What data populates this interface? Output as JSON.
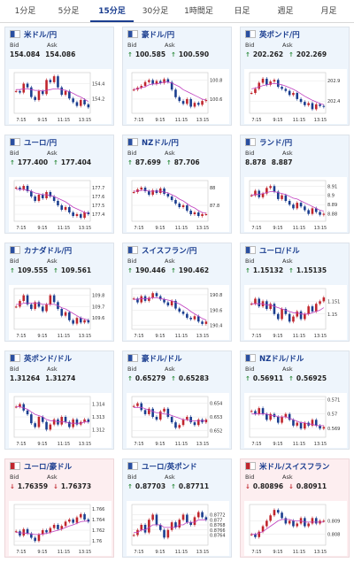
{
  "tabs": [
    {
      "label": "1分足",
      "active": false
    },
    {
      "label": "5分足",
      "active": false
    },
    {
      "label": "15分足",
      "active": true
    },
    {
      "label": "30分足",
      "active": false
    },
    {
      "label": "1時間足",
      "active": false
    },
    {
      "label": "日足",
      "active": false
    },
    {
      "label": "週足",
      "active": false
    },
    {
      "label": "月足",
      "active": false
    }
  ],
  "bid_label": "Bid",
  "ask_label": "Ask",
  "colors": {
    "up": "#c0262d",
    "down": "#1a3d8f",
    "ma": "#c040c0",
    "up_bg": "#eef5fc",
    "down_bg": "#fdeef0"
  },
  "cards": [
    {
      "pair": "米ドル/円",
      "flag": "us-jp-flag-icon",
      "trend": "none",
      "bid": "154.084",
      "ask": "154.086",
      "chart_data": {
        "type": "candlestick",
        "x_ticks": [
          "7:15",
          "9:15",
          "11:15",
          "13:15"
        ],
        "y_ticks": [
          "154.4",
          "154.2"
        ],
        "closes": [
          154.3,
          154.28,
          154.4,
          154.35,
          154.22,
          154.18,
          154.3,
          154.26,
          154.45,
          154.42,
          154.5,
          154.35,
          154.25,
          154.3,
          154.2,
          154.15,
          154.1,
          154.18,
          154.12,
          154.08
        ],
        "ma": [
          154.32,
          154.32,
          154.33,
          154.33,
          154.32,
          154.31,
          154.31,
          154.3,
          154.31,
          154.32,
          154.33,
          154.33,
          154.32,
          154.31,
          154.29,
          154.27,
          154.24,
          154.22,
          154.19,
          154.16
        ],
        "ylim": [
          154.0,
          154.55
        ]
      }
    },
    {
      "pair": "豪ドル/円",
      "flag": "au-jp-flag-icon",
      "trend": "up",
      "bid": "100.585",
      "ask": "100.590",
      "chart_data": {
        "type": "candlestick",
        "x_ticks": [
          "7:15",
          "9:15",
          "11:15",
          "13:15"
        ],
        "y_ticks": [
          "100.8",
          "100.6"
        ],
        "closes": [
          100.7,
          100.72,
          100.74,
          100.78,
          100.8,
          100.76,
          100.79,
          100.77,
          100.81,
          100.78,
          100.7,
          100.62,
          100.58,
          100.55,
          100.6,
          100.52,
          100.56,
          100.54,
          100.58,
          100.59
        ],
        "ma": [
          100.7,
          100.71,
          100.72,
          100.73,
          100.75,
          100.76,
          100.76,
          100.77,
          100.78,
          100.78,
          100.77,
          100.75,
          100.73,
          100.7,
          100.68,
          100.66,
          100.64,
          100.62,
          100.6,
          100.59
        ],
        "ylim": [
          100.45,
          100.88
        ]
      }
    },
    {
      "pair": "英ポンド/円",
      "flag": "gb-jp-flag-icon",
      "trend": "up",
      "bid": "202.262",
      "ask": "202.269",
      "chart_data": {
        "type": "candlestick",
        "x_ticks": [
          "7:15",
          "9:15",
          "11:15",
          "13:15"
        ],
        "y_ticks": [
          "202.9",
          "202.4"
        ],
        "closes": [
          202.6,
          202.7,
          202.85,
          202.95,
          202.8,
          202.88,
          202.92,
          202.75,
          202.7,
          202.65,
          202.55,
          202.6,
          202.45,
          202.38,
          202.3,
          202.35,
          202.2,
          202.32,
          202.28,
          202.26
        ],
        "ma": [
          202.7,
          202.72,
          202.75,
          202.78,
          202.8,
          202.82,
          202.83,
          202.82,
          202.8,
          202.77,
          202.73,
          202.69,
          202.64,
          202.58,
          202.52,
          202.47,
          202.42,
          202.38,
          202.34,
          202.31
        ],
        "ylim": [
          202.1,
          203.1
        ]
      }
    },
    {
      "pair": "ユーロ/円",
      "flag": "eu-jp-flag-icon",
      "trend": "up",
      "bid": "177.400",
      "ask": "177.404",
      "chart_data": {
        "type": "candlestick",
        "x_ticks": [
          "7:15",
          "9:15",
          "11:15",
          "13:15"
        ],
        "y_ticks": [
          "177.7",
          "177.6",
          "177.5",
          "177.4"
        ],
        "closes": [
          177.7,
          177.68,
          177.72,
          177.66,
          177.6,
          177.55,
          177.62,
          177.58,
          177.65,
          177.6,
          177.55,
          177.5,
          177.45,
          177.48,
          177.42,
          177.38,
          177.4,
          177.36,
          177.42,
          177.4
        ],
        "ma": [
          177.68,
          177.68,
          177.68,
          177.67,
          177.66,
          177.64,
          177.63,
          177.62,
          177.62,
          177.61,
          177.6,
          177.58,
          177.56,
          177.54,
          177.51,
          177.48,
          177.46,
          177.44,
          177.42,
          177.41
        ],
        "ylim": [
          177.32,
          177.78
        ]
      }
    },
    {
      "pair": "NZドル/円",
      "flag": "nz-jp-flag-icon",
      "trend": "up",
      "bid": "87.699",
      "ask": "87.706",
      "chart_data": {
        "type": "candlestick",
        "x_ticks": [
          "7:15",
          "9:15",
          "11:15",
          "13:15"
        ],
        "y_ticks": [
          "88",
          "87.8"
        ],
        "closes": [
          87.95,
          87.98,
          88.0,
          87.96,
          87.92,
          87.97,
          87.94,
          87.99,
          87.93,
          87.9,
          87.86,
          87.82,
          87.78,
          87.8,
          87.74,
          87.7,
          87.72,
          87.68,
          87.7,
          87.7
        ],
        "ma": [
          87.96,
          87.96,
          87.97,
          87.97,
          87.96,
          87.96,
          87.96,
          87.96,
          87.95,
          87.94,
          87.92,
          87.9,
          87.87,
          87.85,
          87.82,
          87.79,
          87.77,
          87.74,
          87.72,
          87.71
        ],
        "ylim": [
          87.62,
          88.08
        ]
      }
    },
    {
      "pair": "ランド/円",
      "flag": "za-jp-flag-icon",
      "trend": "none",
      "bid": "8.878",
      "ask": "8.887",
      "chart_data": {
        "type": "candlestick",
        "x_ticks": [
          "7:15",
          "9:15",
          "11:15",
          "13:15"
        ],
        "y_ticks": [
          "8.91",
          "8.9",
          "8.89",
          "8.88"
        ],
        "closes": [
          8.9,
          8.905,
          8.898,
          8.902,
          8.908,
          8.91,
          8.904,
          8.896,
          8.9,
          8.894,
          8.89,
          8.886,
          8.892,
          8.888,
          8.884,
          8.88,
          8.886,
          8.882,
          8.879,
          8.88
        ],
        "ma": [
          8.9,
          8.901,
          8.901,
          8.902,
          8.903,
          8.904,
          8.904,
          8.903,
          8.902,
          8.901,
          8.899,
          8.897,
          8.896,
          8.894,
          8.892,
          8.89,
          8.888,
          8.886,
          8.884,
          8.883
        ],
        "ylim": [
          8.872,
          8.916
        ]
      }
    },
    {
      "pair": "カナダドル/円",
      "flag": "ca-jp-flag-icon",
      "trend": "up",
      "bid": "109.555",
      "ask": "109.561",
      "chart_data": {
        "type": "candlestick",
        "x_ticks": [
          "7:15",
          "9:15",
          "11:15",
          "13:15"
        ],
        "y_ticks": [
          "109.8",
          "109.7",
          "109.6"
        ],
        "closes": [
          109.7,
          109.75,
          109.8,
          109.72,
          109.68,
          109.74,
          109.7,
          109.66,
          109.72,
          109.8,
          109.74,
          109.68,
          109.62,
          109.65,
          109.58,
          109.55,
          109.6,
          109.56,
          109.58,
          109.56
        ],
        "ma": [
          109.72,
          109.72,
          109.73,
          109.73,
          109.73,
          109.73,
          109.73,
          109.72,
          109.72,
          109.72,
          109.72,
          109.71,
          109.69,
          109.68,
          109.66,
          109.64,
          109.62,
          109.6,
          109.59,
          109.58
        ],
        "ylim": [
          109.5,
          109.86
        ]
      }
    },
    {
      "pair": "スイスフラン/円",
      "flag": "ch-jp-flag-icon",
      "trend": "up",
      "bid": "190.446",
      "ask": "190.462",
      "chart_data": {
        "type": "candlestick",
        "x_ticks": [
          "7:15",
          "9:15",
          "11:15",
          "13:15"
        ],
        "y_ticks": [
          "190.8",
          "190.6",
          "190.4"
        ],
        "closes": [
          190.75,
          190.7,
          190.78,
          190.72,
          190.76,
          190.82,
          190.78,
          190.74,
          190.7,
          190.66,
          190.72,
          190.62,
          190.58,
          190.55,
          190.5,
          190.48,
          190.52,
          190.45,
          190.42,
          190.45
        ],
        "ma": [
          190.74,
          190.74,
          190.75,
          190.75,
          190.75,
          190.76,
          190.76,
          190.75,
          190.74,
          190.73,
          190.72,
          190.7,
          190.68,
          190.65,
          190.62,
          190.58,
          190.55,
          190.52,
          190.49,
          190.47
        ],
        "ylim": [
          190.35,
          190.88
        ]
      }
    },
    {
      "pair": "ユーロ/ドル",
      "flag": "eu-us-flag-icon",
      "trend": "up",
      "bid": "1.15132",
      "ask": "1.15135",
      "chart_data": {
        "type": "candlestick",
        "x_ticks": [
          "7:15",
          "9:15",
          "11:15",
          "13:15"
        ],
        "y_ticks": [
          "1.151",
          "1.15"
        ],
        "closes": [
          1.1508,
          1.1512,
          1.1506,
          1.151,
          1.1504,
          1.1508,
          1.15,
          1.1496,
          1.1504,
          1.15,
          1.1494,
          1.1498,
          1.1502,
          1.1496,
          1.15,
          1.1506,
          1.1502,
          1.1508,
          1.151,
          1.1513
        ],
        "ma": [
          1.1508,
          1.1508,
          1.1508,
          1.1508,
          1.1507,
          1.1507,
          1.1506,
          1.1505,
          1.1504,
          1.1503,
          1.1502,
          1.1501,
          1.1501,
          1.15,
          1.15,
          1.15,
          1.1501,
          1.1502,
          1.1503,
          1.1505
        ],
        "ylim": [
          1.1488,
          1.152
        ]
      }
    },
    {
      "pair": "英ポンド/ドル",
      "flag": "gb-us-flag-icon",
      "trend": "none",
      "bid": "1.31264",
      "ask": "1.31274",
      "chart_data": {
        "type": "candlestick",
        "x_ticks": [
          "7:15",
          "9:15",
          "11:15",
          "13:15"
        ],
        "y_ticks": [
          "1.314",
          "1.313",
          "1.312"
        ],
        "closes": [
          1.3138,
          1.314,
          1.3135,
          1.3132,
          1.3125,
          1.3122,
          1.313,
          1.3126,
          1.312,
          1.3124,
          1.3128,
          1.3124,
          1.313,
          1.3126,
          1.3122,
          1.3128,
          1.3124,
          1.3126,
          1.3128,
          1.3126
        ],
        "ma": [
          1.3138,
          1.3138,
          1.3137,
          1.3136,
          1.3134,
          1.3132,
          1.3131,
          1.313,
          1.3128,
          1.3127,
          1.3127,
          1.3126,
          1.3126,
          1.3126,
          1.3125,
          1.3125,
          1.3125,
          1.3125,
          1.3126,
          1.3126
        ],
        "ylim": [
          1.3114,
          1.3146
        ]
      }
    },
    {
      "pair": "豪ドル/ドル",
      "flag": "au-us-flag-icon",
      "trend": "up",
      "bid": "0.65279",
      "ask": "0.65283",
      "chart_data": {
        "type": "candlestick",
        "x_ticks": [
          "7:15",
          "9:15",
          "11:15",
          "13:15"
        ],
        "y_ticks": [
          "0.654",
          "0.653",
          "0.652"
        ],
        "closes": [
          0.6538,
          0.654,
          0.6535,
          0.6532,
          0.6536,
          0.653,
          0.6528,
          0.6534,
          0.6536,
          0.653,
          0.6526,
          0.6522,
          0.6524,
          0.6528,
          0.653,
          0.6526,
          0.6524,
          0.6528,
          0.6526,
          0.6528
        ],
        "ma": [
          0.6537,
          0.6537,
          0.6537,
          0.6536,
          0.6535,
          0.6534,
          0.6533,
          0.6533,
          0.6532,
          0.6532,
          0.6531,
          0.653,
          0.6529,
          0.6528,
          0.6528,
          0.6527,
          0.6527,
          0.6527,
          0.6527,
          0.6527
        ],
        "ylim": [
          0.6515,
          0.6545
        ]
      }
    },
    {
      "pair": "NZドル/ドル",
      "flag": "nz-us-flag-icon",
      "trend": "up",
      "bid": "0.56911",
      "ask": "0.56925",
      "chart_data": {
        "type": "candlestick",
        "x_ticks": [
          "7:15",
          "9:15",
          "11:15",
          "13:15"
        ],
        "y_ticks": [
          "0.571",
          "0.57",
          "0.569"
        ],
        "closes": [
          0.5702,
          0.57,
          0.5704,
          0.57,
          0.5696,
          0.57,
          0.5698,
          0.5694,
          0.5698,
          0.57,
          0.5696,
          0.5692,
          0.5694,
          0.569,
          0.5694,
          0.5692,
          0.5696,
          0.5692,
          0.569,
          0.5691
        ],
        "ma": [
          0.57,
          0.57,
          0.57,
          0.57,
          0.57,
          0.5699,
          0.5699,
          0.5698,
          0.5698,
          0.5698,
          0.5697,
          0.5696,
          0.5695,
          0.5694,
          0.5694,
          0.5693,
          0.5693,
          0.5692,
          0.5692,
          0.5692
        ],
        "ylim": [
          0.5684,
          0.5712
        ]
      }
    },
    {
      "pair": "ユーロ/豪ドル",
      "flag": "eu-au-flag-icon",
      "trend": "down",
      "bid": "1.76359",
      "ask": "1.76373",
      "chart_data": {
        "type": "candlestick",
        "x_ticks": [
          "7:15",
          "9:15",
          "11:15",
          "13:15"
        ],
        "y_ticks": [
          "1.766",
          "1.764",
          "1.762",
          "1.76"
        ],
        "closes": [
          1.7618,
          1.761,
          1.7622,
          1.7614,
          1.7606,
          1.76,
          1.7612,
          1.762,
          1.7616,
          1.7624,
          1.763,
          1.7622,
          1.7628,
          1.7636,
          1.764,
          1.7634,
          1.7644,
          1.765,
          1.764,
          1.7636
        ],
        "ma": [
          1.7616,
          1.7615,
          1.7615,
          1.7614,
          1.7613,
          1.7612,
          1.7612,
          1.7613,
          1.7614,
          1.7616,
          1.7618,
          1.762,
          1.7622,
          1.7625,
          1.7628,
          1.763,
          1.7633,
          1.7636,
          1.7637,
          1.7637
        ],
        "ylim": [
          1.7592,
          1.7668
        ]
      }
    },
    {
      "pair": "ユーロ/英ポンド",
      "flag": "eu-gb-flag-icon",
      "trend": "up",
      "bid": "0.87703",
      "ask": "0.87711",
      "chart_data": {
        "type": "candlestick",
        "x_ticks": [
          "7:15",
          "9:15",
          "11:15",
          "13:15"
        ],
        "y_ticks": [
          "0.8772",
          "0.877",
          "0.8768",
          "0.8766",
          "0.8764"
        ],
        "closes": [
          0.8764,
          0.8766,
          0.8768,
          0.8765,
          0.877,
          0.8772,
          0.8768,
          0.8766,
          0.8763,
          0.8766,
          0.8769,
          0.8767,
          0.877,
          0.8772,
          0.8769,
          0.8768,
          0.8771,
          0.8773,
          0.8771,
          0.877
        ],
        "ma": [
          0.8765,
          0.8765,
          0.8766,
          0.8766,
          0.8767,
          0.8768,
          0.8768,
          0.8768,
          0.8767,
          0.8767,
          0.8767,
          0.8767,
          0.8768,
          0.8768,
          0.8769,
          0.8769,
          0.8769,
          0.877,
          0.877,
          0.877
        ],
        "ylim": [
          0.876,
          0.8776
        ]
      }
    },
    {
      "pair": "米ドル/スイスフラン",
      "flag": "us-ch-flag-icon",
      "trend": "down",
      "bid": "0.80896",
      "ask": "0.80911",
      "chart_data": {
        "type": "candlestick",
        "x_ticks": [
          "7:15",
          "9:15",
          "11:15",
          "13:15"
        ],
        "y_ticks": [
          "0.809",
          "0.808"
        ],
        "closes": [
          0.808,
          0.8078,
          0.8082,
          0.8086,
          0.809,
          0.8094,
          0.8098,
          0.8096,
          0.8092,
          0.8088,
          0.809,
          0.8086,
          0.8088,
          0.8092,
          0.8086,
          0.8088,
          0.8092,
          0.8088,
          0.809,
          0.809
        ],
        "ma": [
          0.808,
          0.808,
          0.8081,
          0.8082,
          0.8084,
          0.8086,
          0.8088,
          0.809,
          0.8091,
          0.8091,
          0.8091,
          0.809,
          0.809,
          0.809,
          0.8089,
          0.8089,
          0.8089,
          0.8089,
          0.8089,
          0.8089
        ],
        "ylim": [
          0.8072,
          0.8102
        ]
      }
    }
  ]
}
